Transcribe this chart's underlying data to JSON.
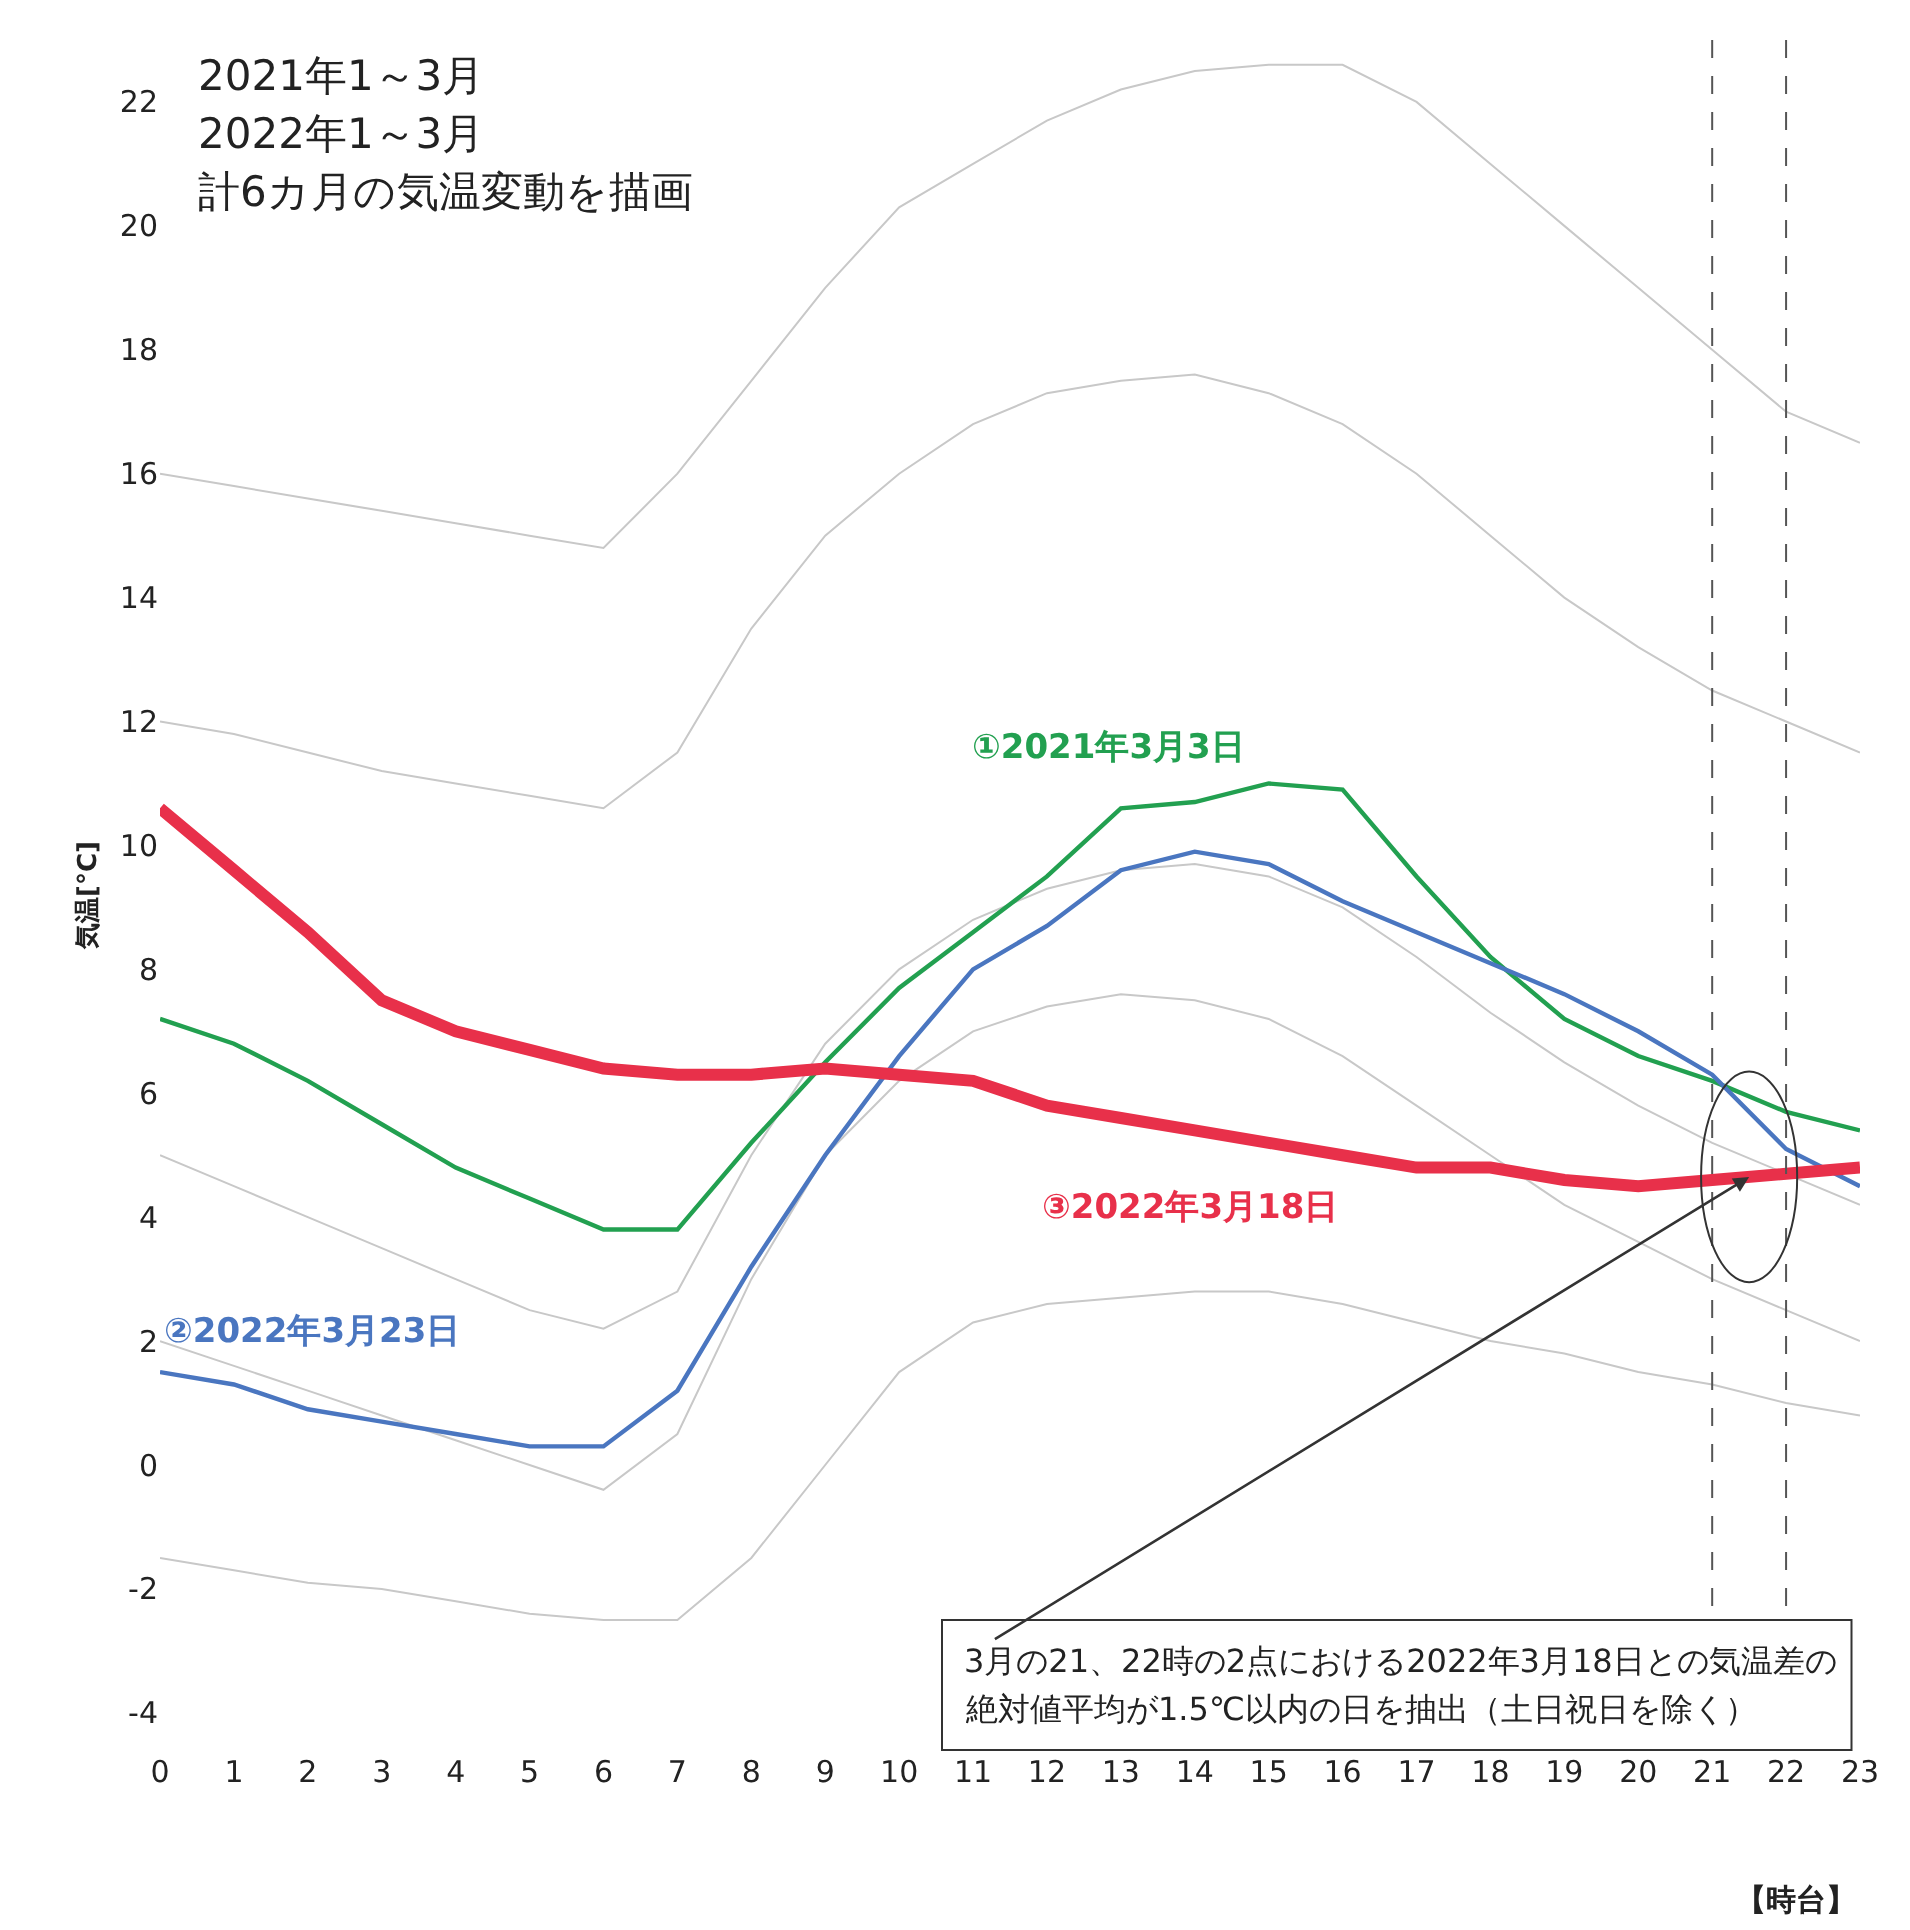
{
  "chart_data": {
    "type": "line",
    "title": "2021年1～3月",
    "subtitle": "2022年1～3月",
    "xlabel": "【時台】",
    "ylabel": "気温[°C]",
    "x": [
      0,
      1,
      2,
      3,
      4,
      5,
      6,
      7,
      8,
      9,
      10,
      11,
      12,
      13,
      14,
      15,
      16,
      17,
      18,
      19,
      20,
      21,
      22,
      23
    ],
    "series": [
      {
        "color": "#c8c8c8",
        "values": [
          16.0,
          15.8,
          15.6,
          15.4,
          15.2,
          15.0,
          14.8,
          16.0,
          17.5,
          19.0,
          20.3,
          21.0,
          21.7,
          22.2,
          22.5,
          22.6,
          22.6,
          22.0,
          21.0,
          20.0,
          19.0,
          18.0,
          17.0,
          16.5
        ]
      },
      {
        "color": "#c8c8c8",
        "values": [
          12.0,
          11.8,
          11.5,
          11.2,
          11.0,
          10.8,
          10.6,
          11.5,
          13.5,
          15.0,
          16.0,
          16.8,
          17.3,
          17.5,
          17.6,
          17.3,
          16.8,
          16.0,
          15.0,
          14.0,
          13.2,
          12.5,
          12.0,
          11.5
        ]
      },
      {
        "color": "#c8c8c8",
        "values": [
          5.0,
          4.5,
          4.0,
          3.5,
          3.0,
          2.5,
          2.2,
          2.8,
          5.0,
          6.8,
          8.0,
          8.8,
          9.3,
          9.6,
          9.7,
          9.5,
          9.0,
          8.2,
          7.3,
          6.5,
          5.8,
          5.2,
          4.7,
          4.2
        ]
      },
      {
        "color": "#c8c8c8",
        "values": [
          2.0,
          1.6,
          1.2,
          0.8,
          0.4,
          0.0,
          -0.4,
          0.5,
          3.0,
          5.0,
          6.2,
          7.0,
          7.4,
          7.6,
          7.5,
          7.2,
          6.6,
          5.8,
          5.0,
          4.2,
          3.6,
          3.0,
          2.5,
          2.0
        ]
      },
      {
        "color": "#c8c8c8",
        "values": [
          -1.5,
          -1.7,
          -1.9,
          -2.0,
          -2.2,
          -2.4,
          -2.5,
          -2.5,
          -1.5,
          0.0,
          1.5,
          2.3,
          2.6,
          2.7,
          2.8,
          2.8,
          2.6,
          2.3,
          2.0,
          1.8,
          1.5,
          1.3,
          1.0,
          0.8
        ]
      },
      {
        "name": "①2021年3月3日",
        "color": "#22a050",
        "values": [
          7.2,
          6.8,
          6.2,
          5.5,
          4.8,
          4.3,
          3.8,
          3.8,
          5.2,
          6.5,
          7.7,
          8.6,
          9.5,
          10.6,
          10.7,
          11.0,
          10.9,
          9.5,
          8.2,
          7.2,
          6.6,
          6.2,
          5.7,
          5.4
        ]
      },
      {
        "name": "②2022年3月23日",
        "color": "#4a76c0",
        "values": [
          1.5,
          1.3,
          0.9,
          0.7,
          0.5,
          0.3,
          0.3,
          1.2,
          3.2,
          5.0,
          6.6,
          8.0,
          8.7,
          9.6,
          9.9,
          9.7,
          9.1,
          8.6,
          8.1,
          7.6,
          7.0,
          6.3,
          5.1,
          4.5
        ]
      },
      {
        "name": "③2022年3月18日",
        "color": "#e8304a",
        "values": [
          10.6,
          9.6,
          8.6,
          7.5,
          7.0,
          6.7,
          6.4,
          6.3,
          6.3,
          6.4,
          6.3,
          6.2,
          5.8,
          5.6,
          5.4,
          5.2,
          5.0,
          4.8,
          4.8,
          4.6,
          4.5,
          4.6,
          4.7,
          4.8
        ]
      }
    ],
    "xlim": [
      0,
      23
    ],
    "ylim": [
      -4.6,
      23.0
    ],
    "xticks": [
      0,
      1,
      2,
      3,
      4,
      5,
      6,
      7,
      8,
      9,
      10,
      11,
      12,
      13,
      14,
      15,
      16,
      17,
      18,
      19,
      20,
      21,
      22,
      23
    ],
    "yticks": [
      -4,
      -2,
      0,
      2,
      4,
      6,
      8,
      10,
      12,
      14,
      16,
      18,
      20,
      22
    ],
    "ref_lines": [
      {
        "axis": "x",
        "value": 21,
        "color": "#555555",
        "line_style": "dashed"
      },
      {
        "axis": "x",
        "value": 22,
        "color": "#555555",
        "line_style": "dashed"
      }
    ],
    "annotations": [
      "計6カ月の気温変動を描画",
      {
        "text": "3月の21、22時の2点における2022年3月18日との気温差の",
        "x": 21.5,
        "y": 4.65
      },
      "絶対値平均が1.5℃以内の日を抽出（土日祝日を除く）"
    ],
    "grid": false,
    "legend": false,
    "marker": "none",
    "line_style": "solid"
  }
}
